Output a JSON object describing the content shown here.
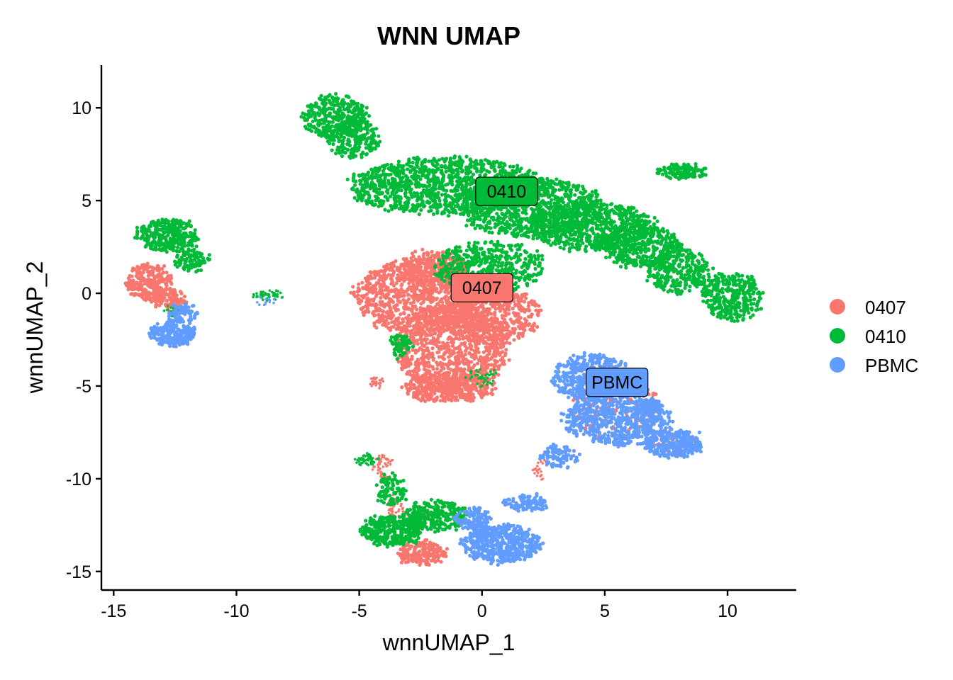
{
  "chart_data": {
    "type": "scatter",
    "title": "WNN UMAP",
    "xlabel": "wnnUMAP_1",
    "ylabel": "wnnUMAP_2",
    "xlim": [
      -15.5,
      12.8
    ],
    "ylim": [
      -16,
      12.3
    ],
    "xticks": [
      -15,
      -10,
      -5,
      0,
      5,
      10
    ],
    "yticks": [
      -15,
      -10,
      -5,
      0,
      5,
      10
    ],
    "grid": false,
    "legend_position": "right",
    "series": [
      {
        "name": "0407",
        "color": "#F8766D",
        "label_position": [
          0,
          0.3
        ],
        "regions": [
          {
            "cx": -2.7,
            "cy": -0.2,
            "rx": 2.5,
            "ry": 2.0,
            "n": 900
          },
          {
            "cx": -1.2,
            "cy": -3.0,
            "rx": 2.3,
            "ry": 2.4,
            "n": 1000
          },
          {
            "cx": 0.5,
            "cy": -1.2,
            "rx": 1.9,
            "ry": 1.6,
            "n": 500
          },
          {
            "cx": -2.0,
            "cy": 1.3,
            "rx": 1.4,
            "ry": 1.0,
            "n": 300
          },
          {
            "cx": -1.3,
            "cy": -5.1,
            "rx": 1.8,
            "ry": 0.8,
            "n": 350
          },
          {
            "cx": -13.6,
            "cy": 0.6,
            "rx": 0.9,
            "ry": 1.0,
            "n": 250
          },
          {
            "cx": -12.8,
            "cy": -0.3,
            "rx": 0.7,
            "ry": 0.5,
            "n": 100
          },
          {
            "cx": -2.4,
            "cy": -14.0,
            "rx": 1.0,
            "ry": 0.6,
            "n": 180
          },
          {
            "cx": -4.0,
            "cy": -9.3,
            "rx": 0.4,
            "ry": 0.6,
            "n": 50
          },
          {
            "cx": -3.5,
            "cy": -11.5,
            "rx": 0.4,
            "ry": 0.5,
            "n": 40
          },
          {
            "cx": -2.7,
            "cy": -12.3,
            "rx": 0.5,
            "ry": 0.6,
            "n": 60
          },
          {
            "cx": -4.3,
            "cy": -4.8,
            "rx": 0.3,
            "ry": 0.3,
            "n": 25
          },
          {
            "cx": 5.5,
            "cy": -6.3,
            "rx": 2.0,
            "ry": 1.6,
            "n": 120
          },
          {
            "cx": 7.8,
            "cy": -8.0,
            "rx": 0.9,
            "ry": 0.6,
            "n": 60
          },
          {
            "cx": 2.4,
            "cy": -9.5,
            "rx": 0.3,
            "ry": 0.5,
            "n": 20
          }
        ]
      },
      {
        "name": "0410",
        "color": "#00BA38",
        "label_position": [
          1,
          5.5
        ],
        "regions": [
          {
            "cx": -6.0,
            "cy": 9.5,
            "rx": 1.3,
            "ry": 1.2,
            "n": 380
          },
          {
            "cx": -5.2,
            "cy": 8.3,
            "rx": 1.0,
            "ry": 1.0,
            "n": 200
          },
          {
            "cx": -1.5,
            "cy": 5.8,
            "rx": 4.0,
            "ry": 1.5,
            "n": 1200
          },
          {
            "cx": 2.0,
            "cy": 4.6,
            "rx": 3.0,
            "ry": 1.6,
            "n": 900
          },
          {
            "cx": 4.5,
            "cy": 3.6,
            "rx": 2.6,
            "ry": 1.3,
            "n": 700
          },
          {
            "cx": 0.3,
            "cy": 1.4,
            "rx": 2.2,
            "ry": 1.4,
            "n": 500
          },
          {
            "cx": 6.5,
            "cy": 2.5,
            "rx": 1.7,
            "ry": 1.1,
            "n": 400
          },
          {
            "cx": 8.0,
            "cy": 1.2,
            "rx": 1.3,
            "ry": 1.2,
            "n": 300
          },
          {
            "cx": 10.2,
            "cy": -0.2,
            "rx": 1.2,
            "ry": 1.3,
            "n": 350
          },
          {
            "cx": 8.1,
            "cy": 6.6,
            "rx": 1.0,
            "ry": 0.4,
            "n": 130
          },
          {
            "cx": -12.8,
            "cy": 3.1,
            "rx": 1.3,
            "ry": 0.9,
            "n": 320
          },
          {
            "cx": -11.8,
            "cy": 1.8,
            "rx": 0.7,
            "ry": 0.6,
            "n": 100
          },
          {
            "cx": -8.7,
            "cy": -0.1,
            "rx": 0.6,
            "ry": 0.2,
            "n": 50
          },
          {
            "cx": -3.3,
            "cy": -2.8,
            "rx": 0.4,
            "ry": 0.6,
            "n": 70
          },
          {
            "cx": 0.0,
            "cy": -4.5,
            "rx": 0.6,
            "ry": 0.5,
            "n": 40
          },
          {
            "cx": -3.7,
            "cy": -12.8,
            "rx": 1.2,
            "ry": 0.8,
            "n": 330
          },
          {
            "cx": -1.9,
            "cy": -12.0,
            "rx": 1.3,
            "ry": 0.8,
            "n": 280
          },
          {
            "cx": -3.7,
            "cy": -10.6,
            "rx": 0.6,
            "ry": 0.9,
            "n": 90
          },
          {
            "cx": -4.7,
            "cy": -9.0,
            "rx": 0.4,
            "ry": 0.3,
            "n": 50
          },
          {
            "cx": -12.5,
            "cy": -1.0,
            "rx": 0.4,
            "ry": 0.2,
            "n": 30
          }
        ]
      },
      {
        "name": "PBMC",
        "color": "#619CFF",
        "label_position": [
          5.5,
          -4.8
        ],
        "regions": [
          {
            "cx": 4.5,
            "cy": -4.6,
            "rx": 1.6,
            "ry": 1.3,
            "n": 500
          },
          {
            "cx": 5.5,
            "cy": -6.8,
            "rx": 2.2,
            "ry": 1.4,
            "n": 650
          },
          {
            "cx": 7.8,
            "cy": -8.1,
            "rx": 1.2,
            "ry": 0.7,
            "n": 300
          },
          {
            "cx": 6.8,
            "cy": -6.4,
            "rx": 0.6,
            "ry": 0.6,
            "n": 120
          },
          {
            "cx": 3.2,
            "cy": -8.8,
            "rx": 0.8,
            "ry": 0.6,
            "n": 90
          },
          {
            "cx": -12.6,
            "cy": -2.2,
            "rx": 0.9,
            "ry": 0.6,
            "n": 230
          },
          {
            "cx": -12.2,
            "cy": -1.1,
            "rx": 0.6,
            "ry": 0.5,
            "n": 80
          },
          {
            "cx": 0.8,
            "cy": -13.5,
            "rx": 1.6,
            "ry": 1.0,
            "n": 550
          },
          {
            "cx": -0.4,
            "cy": -12.2,
            "rx": 0.7,
            "ry": 0.6,
            "n": 120
          },
          {
            "cx": 1.8,
            "cy": -11.3,
            "rx": 0.9,
            "ry": 0.4,
            "n": 100
          },
          {
            "cx": -8.8,
            "cy": -0.5,
            "rx": 0.3,
            "ry": 0.2,
            "n": 12
          }
        ]
      }
    ]
  }
}
